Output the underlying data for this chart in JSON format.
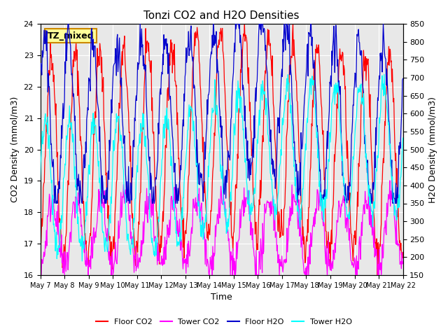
{
  "title": "Tonzi CO2 and H2O Densities",
  "xlabel": "Time",
  "ylabel_left": "CO2 Density (mmol/m3)",
  "ylabel_right": "H2O Density (mmol/m3)",
  "annotation": "TZ_mixed",
  "ylim_left": [
    16.0,
    24.0
  ],
  "ylim_right": [
    150,
    850
  ],
  "yticks_left": [
    16.0,
    17.0,
    18.0,
    19.0,
    20.0,
    21.0,
    22.0,
    23.0,
    24.0
  ],
  "yticks_right": [
    150,
    200,
    250,
    300,
    350,
    400,
    450,
    500,
    550,
    600,
    650,
    700,
    750,
    800,
    850
  ],
  "xtick_labels": [
    "May 7",
    "May 8",
    "May 9",
    "May 10",
    "May 11",
    "May 12",
    "May 13",
    "May 14",
    "May 15",
    "May 16",
    "May 17",
    "May 18",
    "May 19",
    "May 20",
    "May 21",
    "May 22"
  ],
  "colors": {
    "floor_co2": "#FF0000",
    "tower_co2": "#FF00FF",
    "floor_h2o": "#0000CD",
    "tower_h2o": "#00FFFF"
  },
  "legend_labels": [
    "Floor CO2",
    "Tower CO2",
    "Floor H2O",
    "Tower H2O"
  ],
  "background_color": "#E8E8E8",
  "grid_color": "#FFFFFF"
}
